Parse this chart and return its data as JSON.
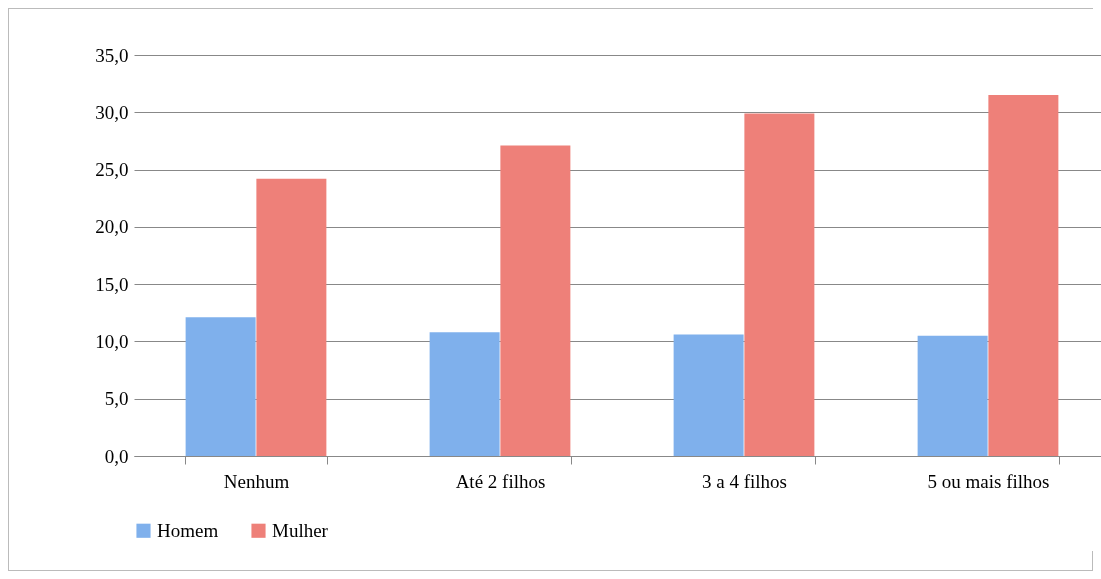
{
  "chart_data": {
    "type": "bar",
    "categories": [
      "Nenhum",
      "Até 2 filhos",
      "3 a 4 filhos",
      "5 ou mais filhos"
    ],
    "series": [
      {
        "name": "Homem",
        "color": "#7fb0ec",
        "values": [
          12.1,
          10.8,
          10.6,
          10.5
        ]
      },
      {
        "name": "Mulher",
        "color": "#ee8079",
        "values": [
          24.2,
          27.1,
          29.9,
          31.5
        ]
      }
    ],
    "ylim": [
      0,
      35
    ],
    "yticks": [
      {
        "value": 0,
        "label": "0,0"
      },
      {
        "value": 5,
        "label": "5,0"
      },
      {
        "value": 10,
        "label": "10,0"
      },
      {
        "value": 15,
        "label": "15,0"
      },
      {
        "value": 20,
        "label": "20,0"
      },
      {
        "value": 25,
        "label": "25,0"
      },
      {
        "value": 30,
        "label": "30,0"
      },
      {
        "value": 35,
        "label": "35,0"
      }
    ],
    "grid": "y",
    "legend": "bottom"
  }
}
